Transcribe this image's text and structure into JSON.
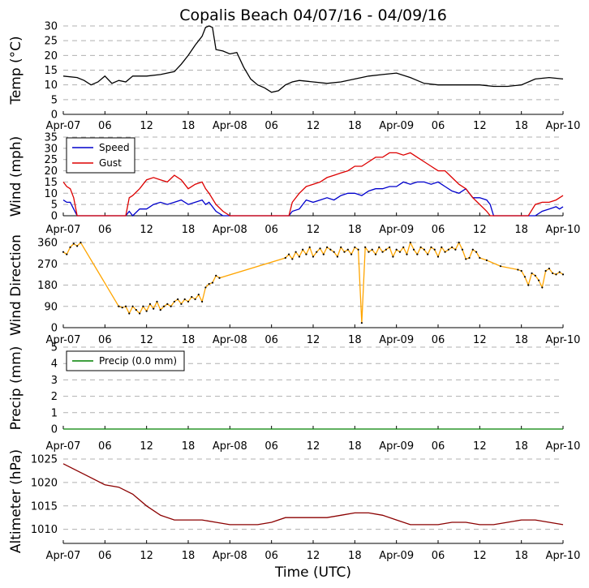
{
  "title": "Copalis Beach 04/07/16 - 04/09/16",
  "xlabel": "Time (UTC)",
  "x_ticks": [
    "Apr-07",
    "06",
    "12",
    "18",
    "Apr-08",
    "06",
    "12",
    "18",
    "Apr-09",
    "06",
    "12",
    "18",
    "Apr-10"
  ],
  "colors": {
    "temp": "#000000",
    "speed": "#0000cc",
    "gust": "#dd0000",
    "direction": "#ffa500",
    "precip": "#008000",
    "altimeter": "#8b0000",
    "grid": "#b0b0b0"
  },
  "chart_data": [
    {
      "type": "line",
      "ylabel": "Temp (°C)",
      "ylim": [
        0,
        30
      ],
      "yticks": [
        "0",
        "5",
        "10",
        "15",
        "20",
        "25",
        "30"
      ],
      "x_hours": [
        0,
        2,
        3,
        4,
        5,
        6,
        7,
        8,
        9,
        10,
        12,
        14,
        16,
        17,
        18,
        19,
        20,
        20.5,
        21,
        21.5,
        22,
        23,
        24,
        25,
        26,
        27,
        28,
        29,
        30,
        31,
        32,
        33,
        34,
        36,
        38,
        40,
        42,
        44,
        46,
        48,
        50,
        52,
        54,
        56,
        58,
        60,
        62,
        64,
        66,
        68,
        70,
        72
      ],
      "values": [
        13,
        12.5,
        11.5,
        10,
        11,
        13,
        10.5,
        11.5,
        11,
        13,
        13,
        13.5,
        14.5,
        17,
        20,
        23.5,
        26.5,
        29.5,
        30,
        29.5,
        22,
        21.5,
        20.5,
        21,
        16,
        12,
        10,
        9,
        7.5,
        8,
        10,
        11,
        11.5,
        11,
        10.5,
        11,
        12,
        13,
        13.5,
        14,
        12.5,
        10.5,
        10,
        10,
        10,
        10,
        9.5,
        9.5,
        10,
        12,
        12.5,
        12
      ]
    },
    {
      "type": "line",
      "ylabel": "Wind (mph)",
      "ylim": [
        0,
        35
      ],
      "yticks": [
        "0",
        "5",
        "10",
        "15",
        "20",
        "25",
        "30",
        "35"
      ],
      "legend": [
        "Speed",
        "Gust"
      ],
      "series": [
        {
          "name": "Speed",
          "x_hours": [
            0,
            0.5,
            1,
            1.5,
            2,
            2.5,
            3,
            4,
            5,
            6,
            7,
            7.5,
            8,
            8.5,
            9,
            9.5,
            10,
            11,
            12,
            13,
            14,
            15,
            16,
            17,
            18,
            19,
            20,
            20.5,
            21,
            22,
            23,
            24,
            25,
            26,
            27,
            28,
            29,
            30,
            31,
            32,
            32.5,
            33,
            34,
            35,
            36,
            37,
            38,
            39,
            40,
            41,
            42,
            43,
            44,
            45,
            46,
            47,
            48,
            49,
            50,
            51,
            52,
            53,
            54,
            55,
            56,
            57,
            58,
            59,
            60,
            61,
            61.5,
            62,
            64,
            65,
            66,
            67,
            68,
            69,
            70,
            71,
            71.5,
            72
          ],
          "values": [
            7,
            6,
            6,
            3,
            0,
            0,
            0,
            0,
            0,
            0,
            0,
            0,
            0,
            0,
            0,
            2,
            0,
            3,
            3,
            5,
            6,
            5,
            6,
            7,
            5,
            6,
            7,
            5,
            6,
            2,
            0,
            0,
            0,
            0,
            0,
            0,
            0,
            0,
            0,
            0,
            0,
            2,
            3,
            7,
            6,
            7,
            8,
            7,
            9,
            10,
            10,
            9,
            11,
            12,
            12,
            13,
            13,
            15,
            14,
            15,
            15,
            14,
            15,
            13,
            11,
            10,
            12,
            8,
            8,
            7,
            5,
            0,
            0,
            0,
            0,
            0,
            0,
            2,
            3,
            4,
            3,
            4
          ]
        },
        {
          "name": "Gust",
          "x_hours": [
            0,
            0.5,
            1,
            1.5,
            2,
            2.5,
            3,
            4,
            5,
            6,
            7,
            7.5,
            8,
            8.5,
            9,
            9.5,
            10,
            11,
            12,
            13,
            14,
            15,
            16,
            17,
            18,
            19,
            20,
            20.5,
            21,
            22,
            23,
            24,
            25,
            26,
            27,
            28,
            29,
            30,
            31,
            32,
            32.5,
            33,
            34,
            35,
            36,
            37,
            38,
            39,
            40,
            41,
            42,
            43,
            44,
            45,
            46,
            47,
            48,
            49,
            50,
            51,
            52,
            53,
            54,
            55,
            56,
            57,
            58,
            59,
            60,
            61,
            61.5,
            62,
            64,
            65,
            66,
            67,
            68,
            69,
            70,
            71,
            71.5,
            72
          ],
          "values": [
            15,
            13,
            12,
            8,
            0,
            0,
            0,
            0,
            0,
            0,
            0,
            0,
            0,
            0,
            0,
            8,
            9,
            12,
            16,
            17,
            16,
            15,
            18,
            16,
            12,
            14,
            15,
            12,
            10,
            5,
            2,
            0,
            0,
            0,
            0,
            0,
            0,
            0,
            0,
            0,
            0,
            6,
            10,
            13,
            14,
            15,
            17,
            18,
            19,
            20,
            22,
            22,
            24,
            26,
            26,
            28,
            28,
            27,
            28,
            26,
            24,
            22,
            20,
            20,
            17,
            14,
            12,
            8,
            5,
            2,
            0,
            0,
            0,
            0,
            0,
            0,
            5,
            6,
            6,
            7,
            8,
            9
          ]
        }
      ]
    },
    {
      "type": "line",
      "ylabel": "Wind Direction",
      "ylim": [
        0,
        360
      ],
      "yticks": [
        "0",
        "90",
        "180",
        "270",
        "360"
      ],
      "x_hours": [
        0,
        0.5,
        1,
        1.5,
        2,
        2.5,
        8,
        8.5,
        9,
        9.5,
        10,
        10.5,
        11,
        11.5,
        12,
        12.5,
        13,
        13.5,
        14,
        14.5,
        15,
        15.5,
        16,
        16.5,
        17,
        17.5,
        18,
        18.5,
        19,
        19.5,
        20,
        20.5,
        21,
        21.5,
        22,
        22.5,
        32,
        32.5,
        33,
        33.5,
        34,
        34.5,
        35,
        35.5,
        36,
        36.5,
        37,
        37.5,
        38,
        38.5,
        39,
        39.5,
        40,
        40.5,
        41,
        41.5,
        42,
        42.5,
        43,
        43.5,
        44,
        44.5,
        45,
        45.5,
        46,
        46.5,
        47,
        47.5,
        48,
        48.5,
        49,
        49.5,
        50,
        50.5,
        51,
        51.5,
        52,
        52.5,
        53,
        53.5,
        54,
        54.5,
        55,
        55.5,
        56,
        56.5,
        57,
        57.5,
        58,
        58.5,
        59,
        59.5,
        60,
        61,
        63,
        65.5,
        66,
        66.5,
        67,
        67.5,
        68,
        68.5,
        69,
        69.5,
        70,
        70.5,
        71,
        71.5,
        72
      ],
      "values": [
        320,
        310,
        340,
        355,
        345,
        360,
        90,
        85,
        90,
        60,
        90,
        75,
        60,
        90,
        70,
        100,
        80,
        110,
        75,
        90,
        100,
        90,
        110,
        120,
        100,
        120,
        110,
        130,
        120,
        140,
        110,
        170,
        185,
        190,
        220,
        210,
        295,
        310,
        290,
        320,
        300,
        330,
        310,
        340,
        300,
        320,
        335,
        310,
        340,
        330,
        320,
        300,
        340,
        320,
        330,
        310,
        340,
        330,
        20,
        340,
        320,
        330,
        310,
        340,
        320,
        330,
        340,
        300,
        330,
        320,
        340,
        310,
        360,
        330,
        310,
        340,
        330,
        310,
        340,
        330,
        300,
        340,
        320,
        330,
        340,
        330,
        360,
        330,
        290,
        295,
        330,
        320,
        295,
        285,
        260,
        245,
        240,
        215,
        180,
        230,
        220,
        200,
        170,
        240,
        250,
        230,
        225,
        235,
        225
      ]
    },
    {
      "type": "line",
      "ylabel": "Precip (mm)",
      "ylim": [
        0,
        5
      ],
      "yticks": [
        "0",
        "1",
        "2",
        "3",
        "4",
        "5"
      ],
      "legend": [
        "Precip (0.0 mm)"
      ],
      "x_hours": [
        0,
        72
      ],
      "values": [
        0,
        0
      ]
    },
    {
      "type": "line",
      "ylabel": "Altimeter (hPa)",
      "ylim": [
        1007,
        1025
      ],
      "yticks": [
        "1010",
        "1015",
        "1020",
        "1025"
      ],
      "x_hours": [
        0,
        2,
        4,
        6,
        8,
        10,
        12,
        14,
        16,
        18,
        20,
        22,
        24,
        26,
        28,
        30,
        32,
        34,
        36,
        38,
        40,
        42,
        44,
        46,
        48,
        50,
        52,
        54,
        56,
        58,
        60,
        62,
        64,
        66,
        68,
        70,
        72
      ],
      "values": [
        1024,
        1022.5,
        1021,
        1019.5,
        1019,
        1017.5,
        1015,
        1013,
        1012,
        1012,
        1012,
        1011.5,
        1011,
        1011,
        1011,
        1011.5,
        1012.5,
        1012.5,
        1012.5,
        1012.5,
        1013,
        1013.5,
        1013.5,
        1013,
        1012,
        1011,
        1011,
        1011,
        1011.5,
        1011.5,
        1011,
        1011,
        1011.5,
        1012,
        1012,
        1011.5,
        1011
      ]
    }
  ]
}
